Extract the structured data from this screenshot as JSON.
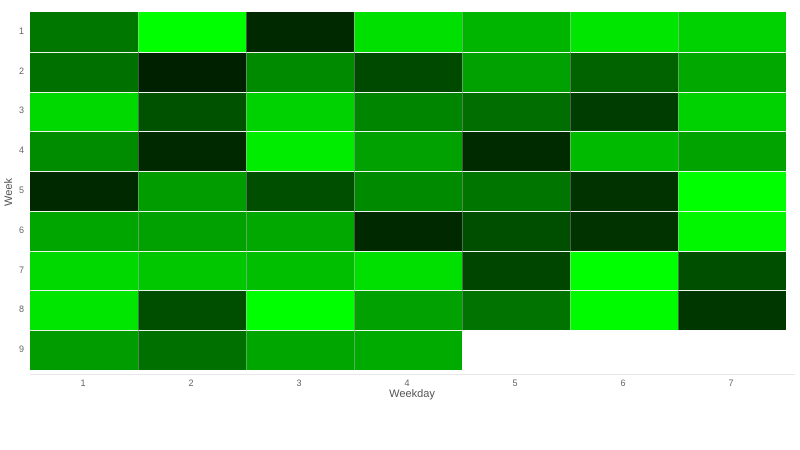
{
  "chart_data": {
    "type": "heatmap",
    "title": "",
    "xlabel": "Weekday",
    "ylabel": "Week",
    "x_categories": [
      "1",
      "2",
      "3",
      "4",
      "5",
      "6",
      "7"
    ],
    "y_categories": [
      "1",
      "2",
      "3",
      "4",
      "5",
      "6",
      "7",
      "8",
      "9"
    ],
    "color_scale": "black-to-green (low = dark, high = bright #00FF00)",
    "values": [
      [
        0.47,
        1.0,
        0.16,
        0.88,
        0.71,
        0.9,
        0.82
      ],
      [
        0.44,
        0.13,
        0.54,
        0.29,
        0.63,
        0.39,
        0.66
      ],
      [
        0.85,
        0.32,
        0.82,
        0.52,
        0.43,
        0.24,
        0.82
      ],
      [
        0.55,
        0.16,
        0.93,
        0.63,
        0.17,
        0.73,
        0.64
      ],
      [
        0.16,
        0.61,
        0.31,
        0.54,
        0.46,
        0.2,
        1.0
      ],
      [
        0.65,
        0.63,
        0.66,
        0.16,
        0.31,
        0.2,
        0.97
      ],
      [
        0.85,
        0.78,
        0.75,
        0.88,
        0.27,
        1.0,
        0.31
      ],
      [
        0.9,
        0.31,
        1.0,
        0.63,
        0.45,
        0.98,
        0.21
      ],
      [
        0.61,
        0.44,
        0.65,
        0.67,
        null,
        null,
        null
      ]
    ]
  },
  "axes": {
    "xlabel": "Weekday",
    "ylabel": "Week"
  }
}
